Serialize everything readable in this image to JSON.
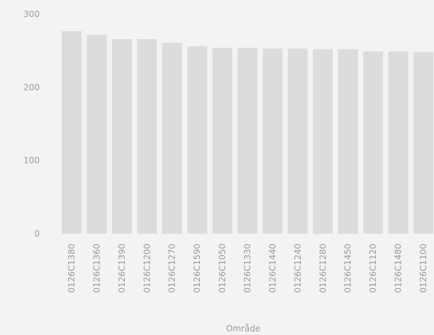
{
  "chart_data": {
    "type": "bar",
    "x_label": "Område",
    "categories": [
      "0126C1380",
      "0126C1360",
      "0126C1390",
      "0126C1200",
      "0126C1270",
      "0126C1590",
      "0126C1050",
      "0126C1330",
      "0126C1440",
      "0126C1240",
      "0126C1280",
      "0126C1450",
      "0126C1120",
      "0126C1480",
      "0126C1100"
    ],
    "values": [
      277,
      272,
      266,
      266,
      261,
      256,
      254,
      254,
      253,
      253,
      252,
      252,
      249,
      249,
      248
    ],
    "color": "#dcdcdc",
    "ylim": [
      0,
      300
    ],
    "yticks": [
      0,
      100,
      200,
      300
    ],
    "grid": false
  }
}
